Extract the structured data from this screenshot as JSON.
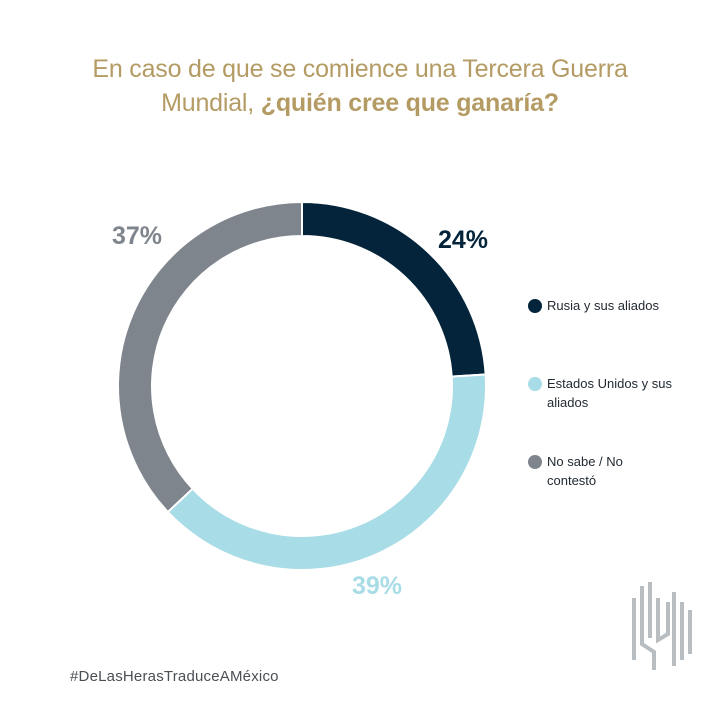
{
  "title": {
    "line1": "En caso de que se comience una Tercera Guerra",
    "line2_normal": "Mundial, ",
    "line2_bold": "¿quién cree que ganaría?"
  },
  "chart_data": {
    "type": "pie",
    "donut": true,
    "categories": [
      "Rusia y sus aliados",
      "Estados Unidos y sus aliados",
      "No sabe / No contestó"
    ],
    "values": [
      24,
      39,
      37
    ],
    "labels": [
      "24%",
      "39%",
      "37%"
    ],
    "colors": [
      "#03243a",
      "#a8dce6",
      "#7e858d"
    ],
    "legend_position": "right"
  },
  "footer": {
    "hashtag": "#DeLasHerasTraduceAMéxico"
  },
  "logo": {
    "icon": "de-las-heras-logo-icon",
    "color": "#b8bdc2"
  }
}
